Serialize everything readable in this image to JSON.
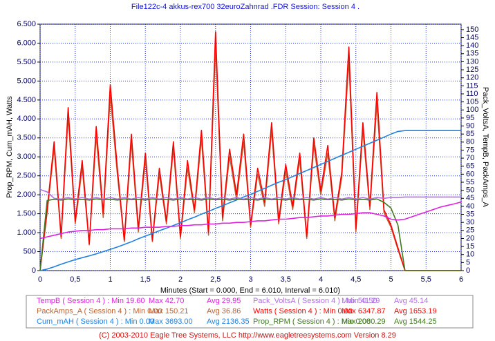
{
  "chart_data": {
    "type": "line",
    "title": "File122c-4 akkus-rex700 32euroZahnrad .FDR   Session: Session 4 .",
    "x_label": "Minutes (Start = 0.000,  End = 6.010,  Interval =  6.010)",
    "y_label": "Prop_RPM, Cum_mAH, Watts",
    "y2_label": "Pack_VoltsA, TempB, PackAmps_A",
    "footer": "(C) 2003-2010 Eagle Tree Systems, LLC     http://www.eagletreesystems.com     Version 8.29",
    "grid": true,
    "xlim": [
      0,
      6
    ],
    "xticks": [
      0,
      {
        "value": 0.5,
        "label": "0,5"
      },
      1,
      {
        "value": 1.5,
        "label": "1,5"
      },
      2,
      {
        "value": 2.5,
        "label": "2,5"
      },
      3,
      {
        "value": 3.5,
        "label": "3,5"
      },
      4,
      {
        "value": 4.5,
        "label": "4,5"
      },
      5,
      {
        "value": 5.5,
        "label": "5,5"
      },
      6
    ],
    "ylim": [
      0,
      6500
    ],
    "yticks": [
      0,
      500,
      {
        "value": 1000,
        "label": "1.000"
      },
      {
        "value": 1500,
        "label": "1.500"
      },
      {
        "value": 2000,
        "label": "2.000"
      },
      {
        "value": 2500,
        "label": "2.500"
      },
      {
        "value": 3000,
        "label": "3.000"
      },
      {
        "value": 3500,
        "label": "3.500"
      },
      {
        "value": 4000,
        "label": "4.000"
      },
      {
        "value": 4500,
        "label": "4.500"
      },
      {
        "value": 5000,
        "label": "5.000"
      },
      {
        "value": 5500,
        "label": "5.500"
      },
      {
        "value": 6000,
        "label": "6.000"
      },
      {
        "value": 6500,
        "label": "6.500"
      }
    ],
    "y2lim": [
      0,
      153.4
    ],
    "y2ticks": [
      0,
      5,
      10,
      15,
      20,
      25,
      30,
      35,
      40,
      45,
      50,
      55,
      60,
      65,
      70,
      75,
      80,
      85,
      90,
      95,
      100,
      105,
      110,
      115,
      120,
      125,
      130,
      135,
      140,
      145,
      150
    ],
    "x": [
      0,
      0.1,
      0.2,
      0.3,
      0.4,
      0.5,
      0.6,
      0.7,
      0.8,
      0.9,
      1,
      1.1,
      1.2,
      1.3,
      1.4,
      1.5,
      1.6,
      1.7,
      1.8,
      1.9,
      2,
      2.1,
      2.2,
      2.3,
      2.4,
      2.5,
      2.6,
      2.7,
      2.8,
      2.9,
      3,
      3.1,
      3.2,
      3.3,
      3.4,
      3.5,
      3.6,
      3.7,
      3.8,
      3.9,
      4,
      4.1,
      4.2,
      4.3,
      4.4,
      4.5,
      4.6,
      4.7,
      4.8,
      4.9,
      5,
      5.1,
      5.2,
      5.3,
      5.4,
      5.5,
      5.6,
      5.7,
      5.8,
      5.9,
      6
    ],
    "series": [
      {
        "name": "TempB ( Session 4 ) : Min 19.60",
        "max": "Max 42.70",
        "avg": "Avg 29.95",
        "color": "#e020e0",
        "axis": "y2",
        "values": [
          20,
          21,
          22,
          23,
          24,
          24.5,
          25,
          25,
          25.5,
          25.5,
          26,
          26,
          26,
          26.5,
          26.5,
          27,
          27,
          27,
          27.5,
          27.5,
          28,
          28,
          28.5,
          28.5,
          29,
          29,
          29.5,
          29.5,
          30,
          30,
          30.5,
          31,
          31,
          31.5,
          32,
          32,
          32.5,
          33,
          33,
          33.5,
          34,
          34,
          34.5,
          35,
          35,
          35.5,
          36,
          36,
          35,
          34,
          32,
          31.5,
          32,
          33.5,
          35,
          36.5,
          38,
          39.5,
          40.5,
          41.5,
          42.7
        ]
      },
      {
        "name": "Pack_VoltsA ( Session 4 ) : Min 41.29",
        "max": "Max 50.50",
        "avg": "Avg 45.14",
        "color": "#b070e0",
        "axis": "y2",
        "values": [
          50.5,
          49,
          45,
          44.5,
          45.5,
          44.5,
          45.5,
          44.5,
          45.5,
          44.5,
          45.5,
          44.5,
          45.5,
          44.5,
          45.5,
          44.5,
          45.5,
          44.5,
          45.5,
          44.5,
          45.5,
          44.5,
          45.5,
          44.5,
          45.5,
          44.5,
          45.5,
          44.5,
          45.5,
          44.5,
          45.5,
          44.5,
          45.5,
          44.5,
          45.5,
          44.5,
          45.5,
          44.5,
          45.5,
          44.5,
          45.5,
          44.5,
          45.5,
          44.5,
          45.5,
          44.5,
          45.5,
          44.5,
          45.5,
          45,
          45.5,
          45.5,
          45.8,
          45.8,
          45.8,
          45.8,
          45.8,
          45.8,
          45.8,
          45.8,
          45.8
        ]
      },
      {
        "name": "PackAmps_A ( Session 4 ) : Min 0.00",
        "max": "Max 150.21",
        "avg": "Avg 36.86",
        "color": "#c06030",
        "axis": "y2",
        "values": [
          0,
          36,
          76,
          20,
          96,
          29,
          64,
          16,
          84,
          33,
          109,
          60,
          18,
          80,
          24,
          69,
          18,
          60,
          29,
          76,
          20,
          64,
          36,
          82,
          22,
          140,
          31,
          71,
          44,
          80,
          27,
          60,
          40,
          87,
          29,
          62,
          38,
          69,
          20,
          78,
          47,
          73,
          31,
          58,
          131,
          24,
          87,
          38,
          104,
          36,
          27,
          13,
          0,
          0,
          0,
          0,
          0,
          0,
          0,
          0,
          0
        ]
      },
      {
        "name": "Watts ( Session 4 ) : Min 0.00",
        "max": "Max 6347.87",
        "avg": "Avg 1653.19",
        "color": "#ff0000",
        "values": [
          0,
          1600,
          3400,
          900,
          4300,
          1300,
          2900,
          700,
          3800,
          1500,
          4900,
          2700,
          800,
          3600,
          1100,
          3100,
          800,
          2700,
          1300,
          3400,
          900,
          2900,
          1600,
          3700,
          1000,
          6300,
          1400,
          3200,
          2000,
          3600,
          1200,
          2700,
          1800,
          3900,
          1300,
          2800,
          1700,
          3100,
          900,
          3500,
          2100,
          3300,
          1400,
          2600,
          5900,
          1100,
          3900,
          1700,
          4700,
          1600,
          1200,
          600,
          0,
          0,
          0,
          0,
          0,
          0,
          0,
          0,
          0
        ]
      },
      {
        "name": "Cum_mAH ( Session 4 ) : Min 0.00",
        "max": "Max 3693.00",
        "avg": "Avg 2136.35",
        "color": "#2080e0",
        "values": [
          0,
          40,
          100,
          170,
          230,
          290,
          340,
          390,
          440,
          500,
          560,
          620,
          690,
          760,
          840,
          910,
          980,
          1050,
          1120,
          1190,
          1260,
          1340,
          1410,
          1490,
          1560,
          1640,
          1710,
          1790,
          1860,
          1940,
          2010,
          2090,
          2170,
          2250,
          2330,
          2400,
          2480,
          2560,
          2640,
          2720,
          2800,
          2880,
          2960,
          3040,
          3120,
          3200,
          3280,
          3360,
          3440,
          3520,
          3600,
          3670,
          3693,
          3693,
          3693,
          3693,
          3693,
          3693,
          3693,
          3693,
          3693
        ]
      },
      {
        "name": "Prop_RPM ( Session 4 ) : Min 0.00",
        "max": "Max 2080.29",
        "avg": "Avg 1544.25",
        "color": "#407820",
        "values": [
          0,
          1850,
          1880,
          1860,
          1890,
          1870,
          1880,
          1860,
          1890,
          1870,
          1880,
          1860,
          1890,
          1870,
          1880,
          1860,
          1890,
          1870,
          1880,
          1860,
          1890,
          1870,
          1880,
          1860,
          1890,
          1870,
          1880,
          1860,
          1890,
          1870,
          1880,
          1860,
          1890,
          1870,
          1880,
          1860,
          1890,
          1870,
          1880,
          1860,
          1890,
          1870,
          1880,
          1860,
          1890,
          1870,
          1880,
          1860,
          1890,
          1800,
          1650,
          1200,
          0,
          0,
          0,
          0,
          0,
          0,
          0,
          0,
          0
        ]
      }
    ]
  }
}
